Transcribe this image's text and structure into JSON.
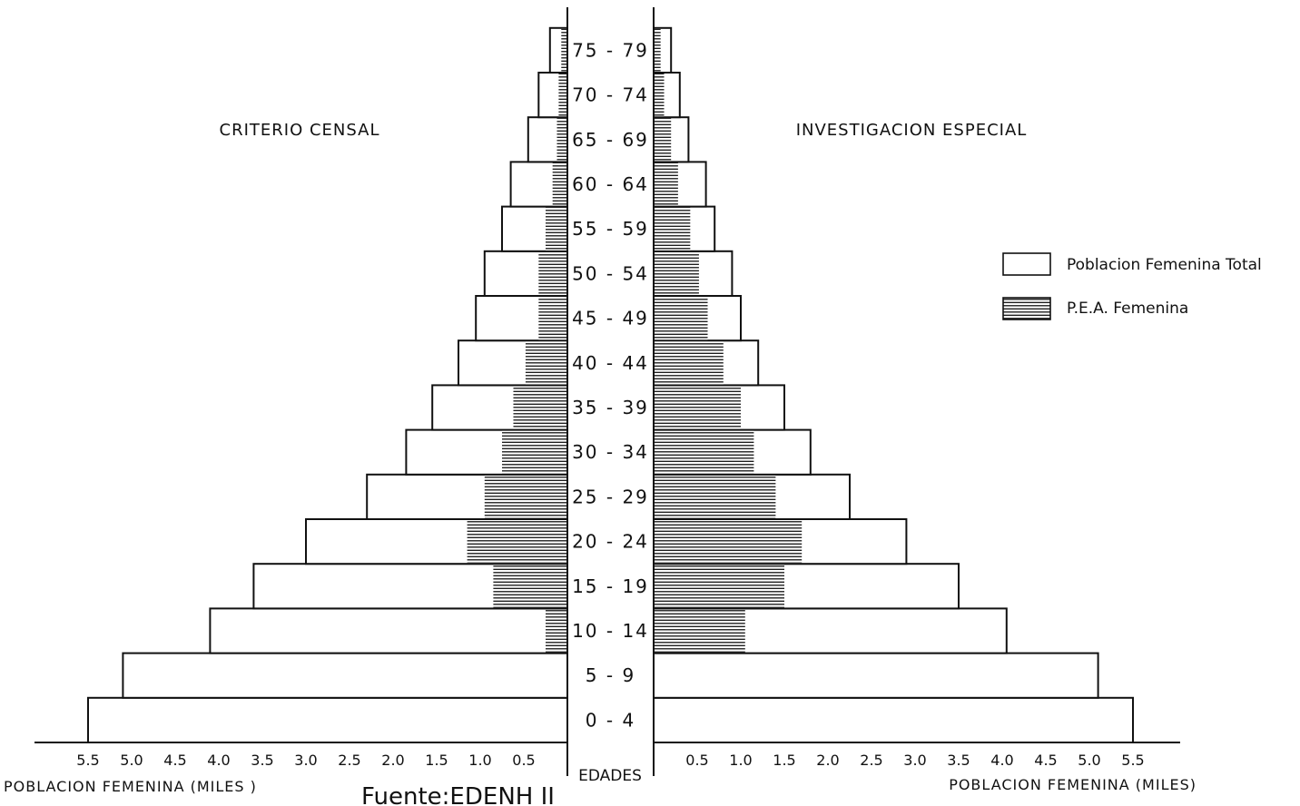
{
  "chart_data": {
    "type": "bar",
    "subtype": "population-pyramid",
    "categories": [
      "0 - 4",
      "5 - 9",
      "10 - 14",
      "15 - 19",
      "20 - 24",
      "25 - 29",
      "30 - 34",
      "35 - 39",
      "40 - 44",
      "45 - 49",
      "50 - 54",
      "55 - 59",
      "60 - 64",
      "65 - 69",
      "70 - 74",
      "75 - 79"
    ],
    "category_axis_label": "EDADES",
    "left_panel": {
      "title": "CRITERIO CENSAL",
      "xlabel": "POBLACION FEMENINA (MILES )",
      "ticks": [
        "5.5",
        "5.0",
        "4.5",
        "4.0",
        "3.5",
        "3.0",
        "2.5",
        "2.0",
        "1.5",
        "1.0",
        "0.5"
      ],
      "xlim": [
        0,
        5.5
      ],
      "series": [
        {
          "name": "Poblacion Femenina Total",
          "values": [
            5.5,
            5.1,
            4.1,
            3.6,
            3.0,
            2.3,
            1.85,
            1.55,
            1.25,
            1.05,
            0.95,
            0.75,
            0.65,
            0.45,
            0.33,
            0.2
          ]
        },
        {
          "name": "P.E.A. Femenina",
          "values": [
            0,
            0,
            0.25,
            0.85,
            1.15,
            0.95,
            0.75,
            0.62,
            0.48,
            0.33,
            0.33,
            0.25,
            0.17,
            0.12,
            0.1,
            0.07
          ]
        }
      ]
    },
    "right_panel": {
      "title": "INVESTIGACION ESPECIAL",
      "xlabel": "POBLACION FEMENINA (MILES)",
      "ticks": [
        "0.5",
        "1.0",
        "1.5",
        "2.0",
        "2.5",
        "3.0",
        "3.5",
        "4.0",
        "4.5",
        "5.0",
        "5.5"
      ],
      "xlim": [
        0,
        5.5
      ],
      "series": [
        {
          "name": "Poblacion Femenina Total",
          "values": [
            5.5,
            5.1,
            4.05,
            3.5,
            2.9,
            2.25,
            1.8,
            1.5,
            1.2,
            1.0,
            0.9,
            0.7,
            0.6,
            0.4,
            0.3,
            0.2
          ]
        },
        {
          "name": "P.E.A. Femenina",
          "values": [
            0,
            0,
            1.05,
            1.5,
            1.7,
            1.4,
            1.15,
            1.0,
            0.8,
            0.62,
            0.52,
            0.42,
            0.28,
            0.2,
            0.12,
            0.08
          ]
        }
      ]
    },
    "legend": {
      "position": "right",
      "items": [
        {
          "label": "Poblacion Femenina Total",
          "style": "empty"
        },
        {
          "label": "P.E.A. Femenina",
          "style": "hatched"
        }
      ]
    },
    "source": "Fuente:EDENH II",
    "grid": false
  }
}
